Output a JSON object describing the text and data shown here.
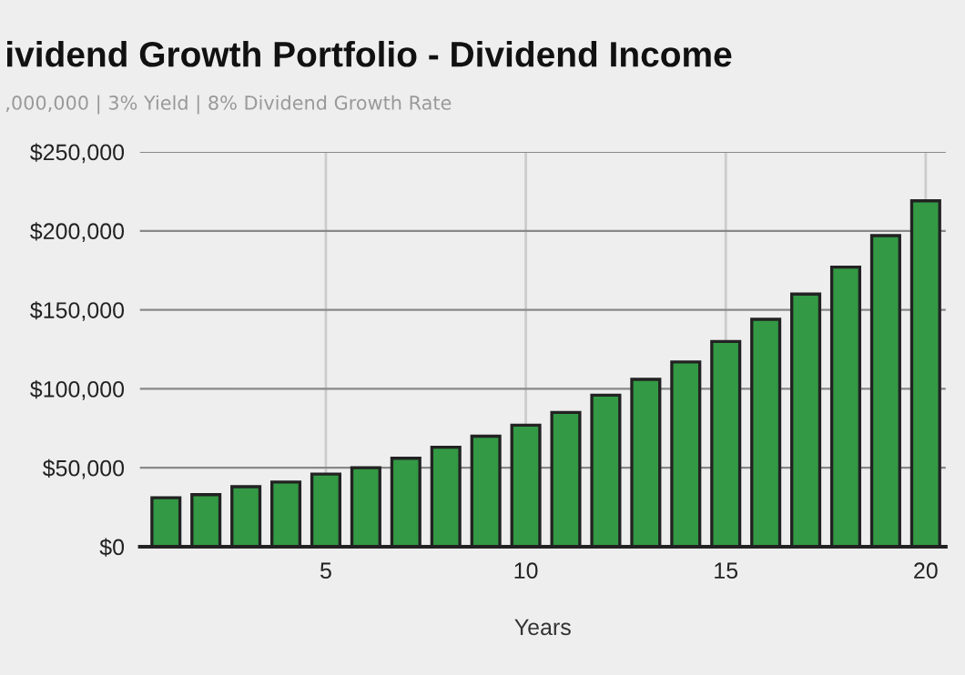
{
  "chart_data": {
    "type": "bar",
    "title": "ividend Growth Portfolio - Dividend Income",
    "subtitle": ",000,000 | 3% Yield | 8% Dividend Growth Rate",
    "xlabel": "Years",
    "x": [
      1,
      2,
      3,
      4,
      5,
      6,
      7,
      8,
      9,
      10,
      11,
      12,
      13,
      14,
      15,
      16,
      17,
      18,
      19,
      20
    ],
    "values": [
      31000,
      33000,
      38000,
      41000,
      46000,
      50000,
      56000,
      63000,
      70000,
      77000,
      85000,
      96000,
      106000,
      117000,
      130000,
      144000,
      160000,
      177000,
      197000,
      219000
    ],
    "color": "#339944",
    "xlim": [
      0.35,
      20.5
    ],
    "xticks": [
      5,
      10,
      15,
      20
    ],
    "ylim": [
      0,
      250000
    ],
    "yticks": [
      {
        "value": 0,
        "label": "$0"
      },
      {
        "value": 50000,
        "label": "$50,000"
      },
      {
        "value": 100000,
        "label": "$100,000"
      },
      {
        "value": 150000,
        "label": "$150,000"
      },
      {
        "value": 200000,
        "label": "$200,000"
      },
      {
        "value": 250000,
        "label": "$250,000"
      }
    ],
    "grid": true
  }
}
